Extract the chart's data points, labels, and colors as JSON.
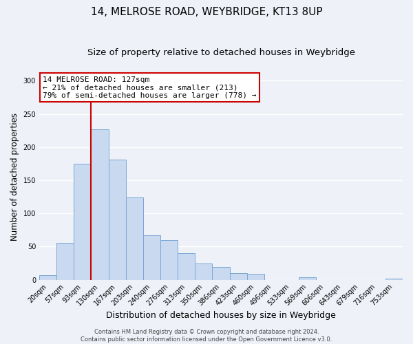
{
  "title": "14, MELROSE ROAD, WEYBRIDGE, KT13 8UP",
  "subtitle": "Size of property relative to detached houses in Weybridge",
  "xlabel": "Distribution of detached houses by size in Weybridge",
  "ylabel": "Number of detached properties",
  "bin_labels": [
    "20sqm",
    "57sqm",
    "93sqm",
    "130sqm",
    "167sqm",
    "203sqm",
    "240sqm",
    "276sqm",
    "313sqm",
    "350sqm",
    "386sqm",
    "423sqm",
    "460sqm",
    "496sqm",
    "533sqm",
    "569sqm",
    "606sqm",
    "643sqm",
    "679sqm",
    "716sqm",
    "753sqm"
  ],
  "bar_values": [
    7,
    56,
    175,
    227,
    181,
    124,
    67,
    60,
    40,
    25,
    19,
    10,
    9,
    0,
    0,
    4,
    0,
    0,
    0,
    0,
    2
  ],
  "bar_color": "#c9d9f0",
  "bar_edge_color": "#7ba7d4",
  "ylim": [
    0,
    310
  ],
  "yticks": [
    0,
    50,
    100,
    150,
    200,
    250,
    300
  ],
  "vline_x": 2.5,
  "vline_color": "#cc0000",
  "annotation_title": "14 MELROSE ROAD: 127sqm",
  "annotation_line1": "← 21% of detached houses are smaller (213)",
  "annotation_line2": "79% of semi-detached houses are larger (778) →",
  "annotation_box_color": "#ffffff",
  "annotation_box_edge": "#cc0000",
  "footer1": "Contains HM Land Registry data © Crown copyright and database right 2024.",
  "footer2": "Contains public sector information licensed under the Open Government Licence v3.0.",
  "background_color": "#eef2f8",
  "grid_color": "#ffffff",
  "title_fontsize": 11,
  "subtitle_fontsize": 9.5,
  "xlabel_fontsize": 9,
  "ylabel_fontsize": 8.5,
  "tick_fontsize": 7,
  "footer_fontsize": 6,
  "ann_fontsize": 8
}
